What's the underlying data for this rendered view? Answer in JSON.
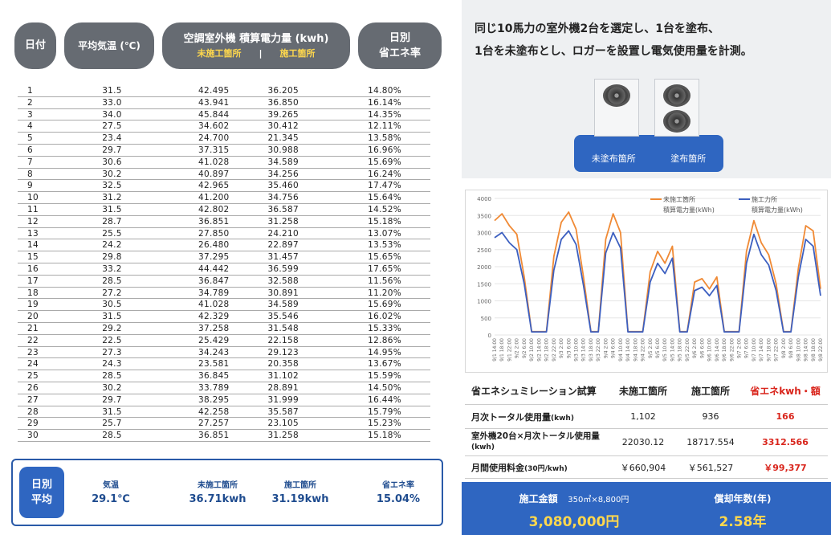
{
  "table": {
    "headers": {
      "day": "日付",
      "temp": "平均気温 (℃)",
      "power": "空調室外機 積算電力量 (kwh)",
      "untreated": "未施工箇所",
      "sep": "|",
      "treated": "施工箇所",
      "saving_line1": "日別",
      "saving_line2": "省エネ率"
    },
    "rows": [
      [
        "1",
        "31.5",
        "42.495",
        "36.205",
        "14.80%"
      ],
      [
        "2",
        "33.0",
        "43.941",
        "36.850",
        "16.14%"
      ],
      [
        "3",
        "34.0",
        "45.844",
        "39.265",
        "14.35%"
      ],
      [
        "4",
        "27.5",
        "34.602",
        "30.412",
        "12.11%"
      ],
      [
        "5",
        "23.4",
        "24.700",
        "21.345",
        "13.58%"
      ],
      [
        "6",
        "29.7",
        "37.315",
        "30.988",
        "16.96%"
      ],
      [
        "7",
        "30.6",
        "41.028",
        "34.589",
        "15.69%"
      ],
      [
        "8",
        "30.2",
        "40.897",
        "34.256",
        "16.24%"
      ],
      [
        "9",
        "32.5",
        "42.965",
        "35.460",
        "17.47%"
      ],
      [
        "10",
        "31.2",
        "41.200",
        "34.756",
        "15.64%"
      ],
      [
        "11",
        "31.5",
        "42.802",
        "36.587",
        "14.52%"
      ],
      [
        "12",
        "28.7",
        "36.851",
        "31.258",
        "15.18%"
      ],
      [
        "13",
        "25.5",
        "27.850",
        "24.210",
        "13.07%"
      ],
      [
        "14",
        "24.2",
        "26.480",
        "22.897",
        "13.53%"
      ],
      [
        "15",
        "29.8",
        "37.295",
        "31.457",
        "15.65%"
      ],
      [
        "16",
        "33.2",
        "44.442",
        "36.599",
        "17.65%"
      ],
      [
        "17",
        "28.5",
        "36.847",
        "32.588",
        "11.56%"
      ],
      [
        "18",
        "27.2",
        "34.789",
        "30.891",
        "11.20%"
      ],
      [
        "19",
        "30.5",
        "41.028",
        "34.589",
        "15.69%"
      ],
      [
        "20",
        "31.5",
        "42.329",
        "35.546",
        "16.02%"
      ],
      [
        "21",
        "29.2",
        "37.258",
        "31.548",
        "15.33%"
      ],
      [
        "22",
        "22.5",
        "25.429",
        "22.158",
        "12.86%"
      ],
      [
        "23",
        "27.3",
        "34.243",
        "29.123",
        "14.95%"
      ],
      [
        "24",
        "24.3",
        "23.581",
        "20.358",
        "13.67%"
      ],
      [
        "25",
        "28.5",
        "36.845",
        "31.102",
        "15.59%"
      ],
      [
        "26",
        "30.2",
        "33.789",
        "28.891",
        "14.50%"
      ],
      [
        "27",
        "29.7",
        "38.295",
        "31.999",
        "16.44%"
      ],
      [
        "28",
        "31.5",
        "42.258",
        "35.587",
        "15.79%"
      ],
      [
        "29",
        "25.7",
        "27.257",
        "23.105",
        "15.23%"
      ],
      [
        "30",
        "28.5",
        "36.851",
        "31.258",
        "15.18%"
      ]
    ]
  },
  "average": {
    "label_line1": "日別",
    "label_line2": "平均",
    "temp_label": "気温",
    "temp_value": "29.1℃",
    "untreated_label": "未施工箇所",
    "untreated_value": "36.71kwh",
    "treated_label": "施工箇所",
    "treated_value": "31.19kwh",
    "saving_label": "省エネ率",
    "saving_value": "15.04%"
  },
  "intro": {
    "line1": "同じ10馬力の室外機2台を選定し、1台を塗布、",
    "line2": "1台を未塗布とし、ロガーを設置し電気使用量を計測。"
  },
  "photo": {
    "untreated_label": "未塗布箇所",
    "treated_label": "塗布箇所"
  },
  "chart_data": {
    "type": "line",
    "ylim": [
      0,
      4000
    ],
    "yticks": [
      0,
      500,
      1000,
      1500,
      2000,
      2500,
      3000,
      3500,
      4000
    ],
    "legend_position": "top-right",
    "xticks": [
      "9/1 14:00",
      "9/1 18:00",
      "9/1 22:00",
      "9/2 2:00",
      "9/2 6:00",
      "9/2 10:00",
      "9/2 14:00",
      "9/2 18:00",
      "9/2 22:00",
      "9/3 2:00",
      "9/3 6:00",
      "9/3 10:00",
      "9/3 14:00",
      "9/3 18:00",
      "9/3 22:00",
      "9/4 2:00",
      "9/4 6:00",
      "9/4 10:00",
      "9/4 14:00",
      "9/4 18:00",
      "9/4 22:00",
      "9/5 2:00",
      "9/5 6:00",
      "9/5 10:00",
      "9/5 14:00",
      "9/5 18:00",
      "9/5 22:00",
      "9/6 2:00",
      "9/6 6:00",
      "9/6 10:00",
      "9/6 14:00",
      "9/6 18:00",
      "9/6 22:00",
      "9/7 2:00",
      "9/7 6:00",
      "9/7 10:00",
      "9/7 14:00",
      "9/7 18:00",
      "9/7 22:00",
      "9/8 2:00",
      "9/8 6:00",
      "9/8 10:00",
      "9/8 14:00",
      "9/8 18:00",
      "9/8 22:00"
    ],
    "series": [
      {
        "name": "未施工箇所",
        "name2": "積算電力量(kWh)",
        "color": "#f08a35",
        "values": [
          3350,
          3550,
          3200,
          2950,
          1700,
          100,
          100,
          100,
          2300,
          3300,
          3600,
          3100,
          1700,
          100,
          100,
          2800,
          3550,
          3000,
          100,
          100,
          100,
          1850,
          2450,
          2100,
          2600,
          100,
          100,
          1550,
          1650,
          1350,
          1700,
          100,
          100,
          100,
          2450,
          3350,
          2700,
          2350,
          1500,
          100,
          100,
          1950,
          3200,
          3050,
          1350
        ]
      },
      {
        "name": "施工力所",
        "name2": "積算電力量(kWh)",
        "color": "#3c5fc0",
        "values": [
          2850,
          3000,
          2700,
          2500,
          1500,
          90,
          90,
          90,
          1900,
          2800,
          3050,
          2650,
          1450,
          90,
          90,
          2400,
          3000,
          2550,
          90,
          90,
          90,
          1550,
          2100,
          1800,
          2250,
          90,
          90,
          1300,
          1400,
          1150,
          1450,
          90,
          90,
          90,
          2100,
          2950,
          2350,
          2050,
          1300,
          90,
          90,
          1700,
          2800,
          2600,
          1150
        ]
      }
    ]
  },
  "simulation": {
    "header": [
      "省エネシュミレーション試算",
      "未施工箇所",
      "施工箇所",
      "省エネkwh・額"
    ],
    "rows": [
      {
        "label": "月次トータル使用量",
        "unit": "(kwh)",
        "untreated": "1,102",
        "treated": "936",
        "saving": "166"
      },
      {
        "label": "室外機20台×月次トータル使用量",
        "unit": "(kwh)",
        "untreated": "22030.12",
        "treated": "18717.554",
        "saving": "3312.566"
      },
      {
        "label": "月間使用料金",
        "unit": "(30円/kwh)",
        "untreated": "￥660,904",
        "treated": "￥561,527",
        "saving": "￥99,377"
      }
    ]
  },
  "cost": {
    "amount_label": "施工金額",
    "amount_detail": "350㎡×8,800円",
    "amount_value": "3,080,000円",
    "payback_label": "償却年数(年)",
    "payback_value": "2.58年"
  },
  "colors": {
    "pill": "#666b72",
    "accent_blue": "#2f66c1",
    "highlight_yellow": "#ffd84d",
    "saving_red": "#d9251c"
  }
}
